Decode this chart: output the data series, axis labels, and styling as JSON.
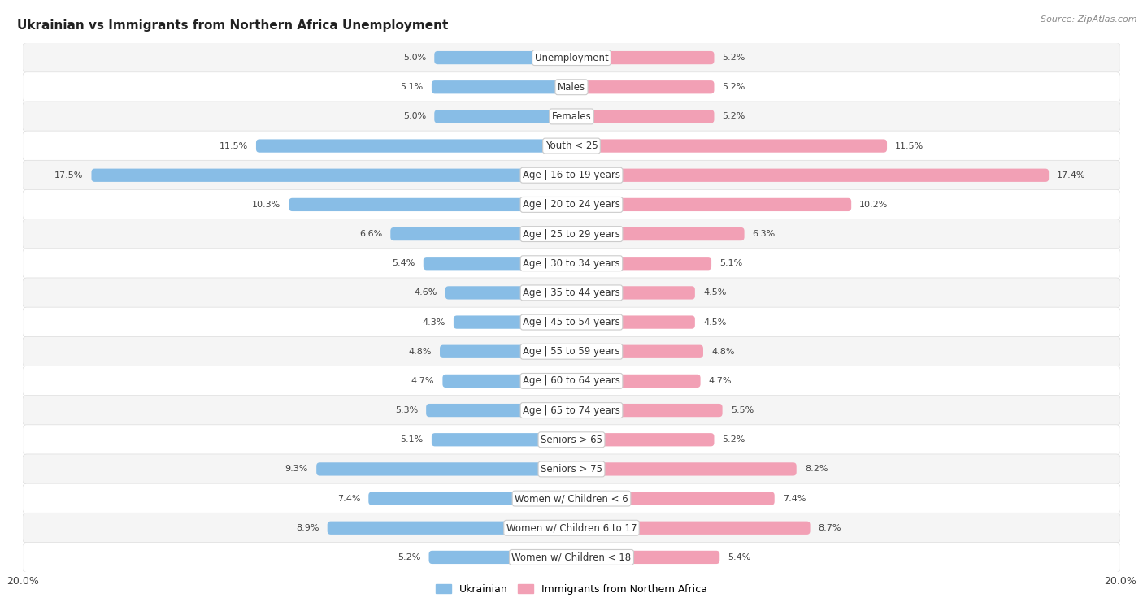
{
  "title": "Ukrainian vs Immigrants from Northern Africa Unemployment",
  "source": "Source: ZipAtlas.com",
  "categories": [
    "Unemployment",
    "Males",
    "Females",
    "Youth < 25",
    "Age | 16 to 19 years",
    "Age | 20 to 24 years",
    "Age | 25 to 29 years",
    "Age | 30 to 34 years",
    "Age | 35 to 44 years",
    "Age | 45 to 54 years",
    "Age | 55 to 59 years",
    "Age | 60 to 64 years",
    "Age | 65 to 74 years",
    "Seniors > 65",
    "Seniors > 75",
    "Women w/ Children < 6",
    "Women w/ Children 6 to 17",
    "Women w/ Children < 18"
  ],
  "ukrainian": [
    5.0,
    5.1,
    5.0,
    11.5,
    17.5,
    10.3,
    6.6,
    5.4,
    4.6,
    4.3,
    4.8,
    4.7,
    5.3,
    5.1,
    9.3,
    7.4,
    8.9,
    5.2
  ],
  "northern_africa": [
    5.2,
    5.2,
    5.2,
    11.5,
    17.4,
    10.2,
    6.3,
    5.1,
    4.5,
    4.5,
    4.8,
    4.7,
    5.5,
    5.2,
    8.2,
    7.4,
    8.7,
    5.4
  ],
  "ukrainian_color": "#88bde6",
  "northern_africa_color": "#f2a0b5",
  "axis_max": 20.0,
  "background_color": "#ffffff",
  "row_color_odd": "#f5f5f5",
  "row_color_even": "#ffffff",
  "title_fontsize": 11,
  "label_fontsize": 8.5,
  "value_fontsize": 8.0,
  "source_fontsize": 8.0,
  "legend_ukrainian": "Ukrainian",
  "legend_northern_africa": "Immigrants from Northern Africa",
  "bar_height": 0.45
}
